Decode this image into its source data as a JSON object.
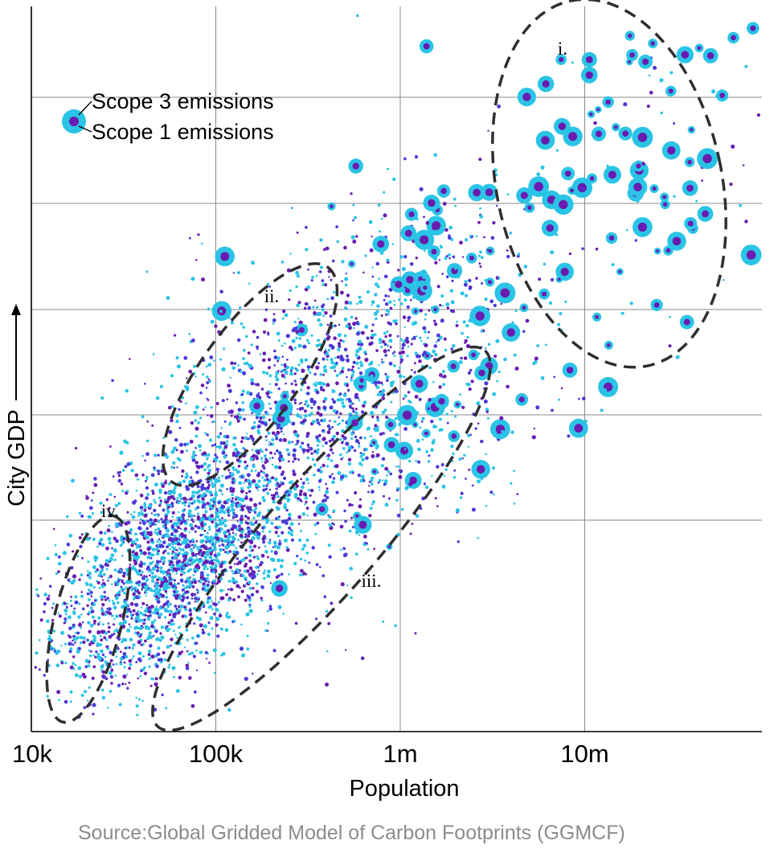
{
  "chart_data": {
    "type": "scatter",
    "x_scale": "log",
    "xlim": [
      10000,
      90000
    ],
    "xlabel": "Population",
    "ylabel": "City GDP",
    "x_ticks": [
      {
        "value": 10000,
        "label": "10k"
      },
      {
        "value": 100000,
        "label": "100k"
      },
      {
        "value": 1000000,
        "label": "1m"
      },
      {
        "value": 10000000,
        "label": "10m"
      }
    ],
    "grid": true,
    "legend": {
      "placement": "top-left",
      "entries": [
        {
          "label": "Scope 3 emissions",
          "color": "#2ac4e6"
        },
        {
          "label": "Scope 1 emissions",
          "color": "#6a1bb0"
        }
      ]
    },
    "clusters": [
      {
        "label": "i."
      },
      {
        "label": "ii."
      },
      {
        "label": "iii."
      },
      {
        "label": "iv."
      }
    ],
    "colors": {
      "scope3": "#2ac4e6",
      "scope1": "#6a1bb0",
      "scope1_alt": "#4a3bd8"
    },
    "source": "Source:Global Gridded Model of Carbon Footprints (GGMCF)"
  }
}
